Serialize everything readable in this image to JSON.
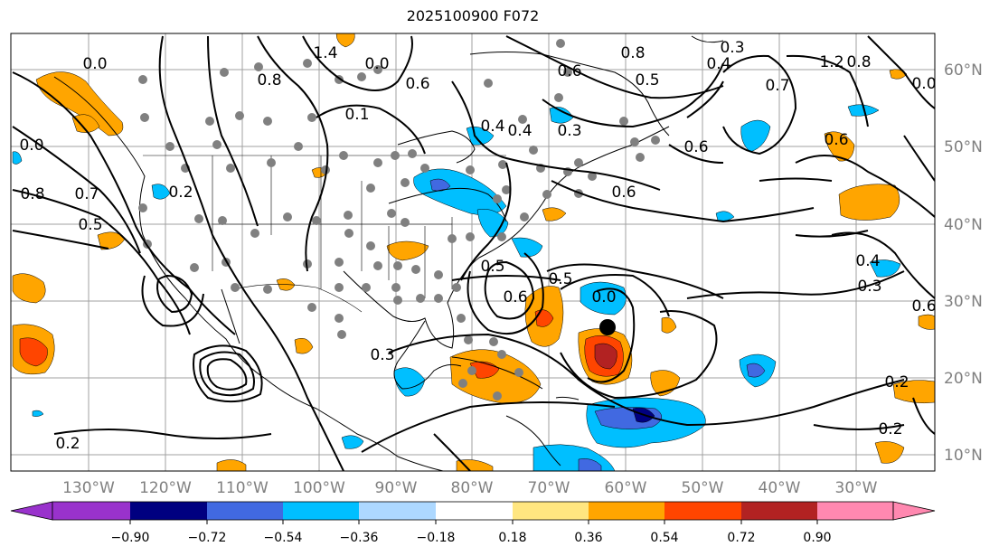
{
  "title": "2025100900 F072",
  "map": {
    "lon_labels": [
      "130°W",
      "120°W",
      "110°W",
      "100°W",
      "90°W",
      "80°W",
      "70°W",
      "60°W",
      "50°W",
      "40°W",
      "30°W"
    ],
    "lat_labels": [
      "60°N",
      "50°N",
      "40°N",
      "30°N",
      "20°N",
      "10°N"
    ],
    "contour_labels": [
      "1.4",
      "1.2",
      "0.8",
      "0.8",
      "0.8",
      "0.8",
      "0.7",
      "0.7",
      "0.6",
      "0.6",
      "0.6",
      "0.6",
      "0.5",
      "0.5",
      "0.5",
      "0.5",
      "0.4",
      "0.4",
      "0.4",
      "0.3",
      "0.3",
      "0.3",
      "0.3",
      "0.2",
      "0.2",
      "0.2",
      "0.2",
      "0.1",
      "0.0",
      "0.0",
      "0.0",
      "0.0",
      "0.6",
      "0.0",
      "0.6",
      "0.4",
      "0.6"
    ],
    "colors": {
      "orange": "#ffa500",
      "orange_red": "#ff4500",
      "firebrick": "#b22222",
      "deep_sky_blue": "#00bfff",
      "royal_blue": "#4169e1",
      "navy": "#000080",
      "station_dot": "#808080",
      "grid": "#a0a0a0",
      "axis_label": "#808080"
    }
  },
  "colorbar": {
    "tick_labels": [
      "−0.90",
      "−0.72",
      "−0.54",
      "−0.36",
      "−0.18",
      "0.18",
      "0.36",
      "0.54",
      "0.72",
      "0.90"
    ],
    "colors": [
      "#9932cc",
      "#000080",
      "#4169e1",
      "#00bfff",
      "#add8ff",
      "#ffffff",
      "#ffe680",
      "#ffa500",
      "#ff4500",
      "#b22222",
      "#ff88b0"
    ]
  }
}
